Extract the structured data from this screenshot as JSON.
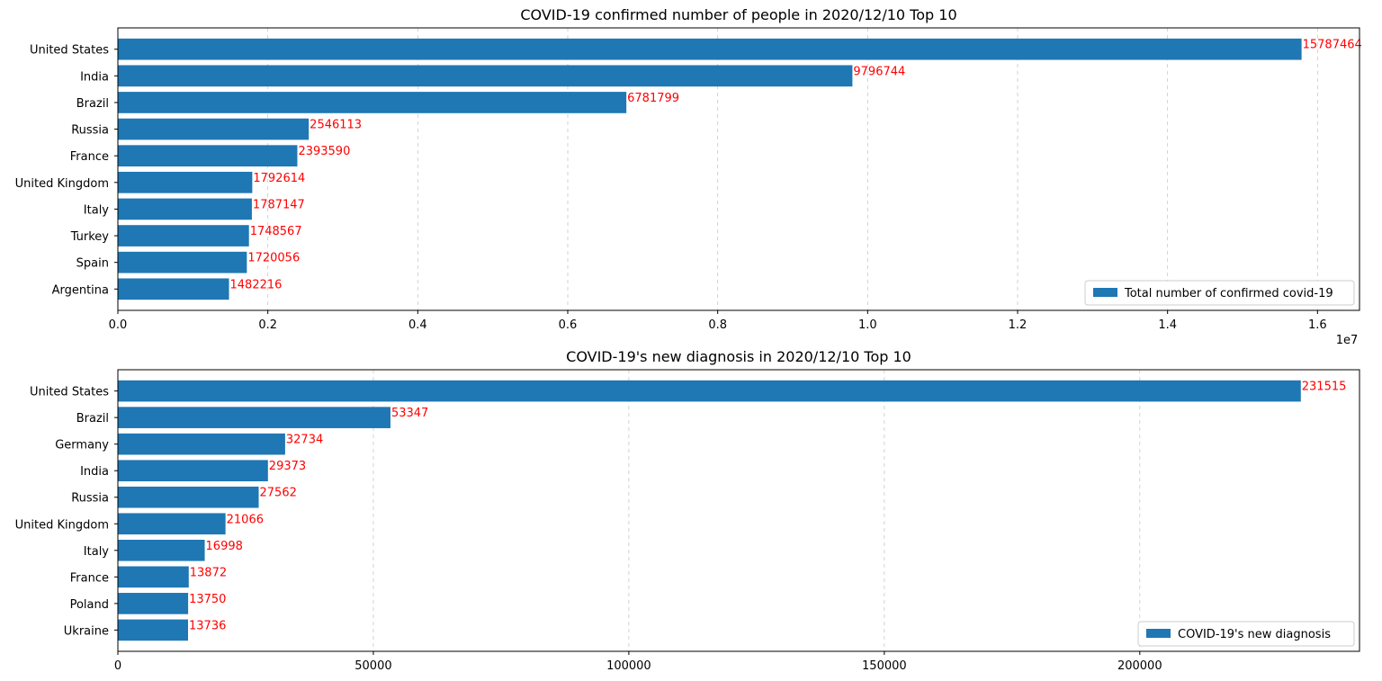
{
  "chart_data": [
    {
      "type": "bar",
      "orientation": "horizontal",
      "title": "COVID-19 confirmed number of people in 2020/12/10 Top 10",
      "categories": [
        "United States",
        "India",
        "Brazil",
        "Russia",
        "France",
        "United Kingdom",
        "Italy",
        "Turkey",
        "Spain",
        "Argentina"
      ],
      "values": [
        15787464,
        9796744,
        6781799,
        2546113,
        2393590,
        1792614,
        1787147,
        1748567,
        1720056,
        1482216
      ],
      "series_name": "Total number of confirmed covid-19",
      "xlim": [
        0,
        16560000
      ],
      "xticks": [
        0,
        2000000,
        4000000,
        6000000,
        8000000,
        10000000,
        12000000,
        14000000,
        16000000
      ],
      "xtick_labels": [
        "0.0",
        "0.2",
        "0.4",
        "0.6",
        "0.8",
        "1.0",
        "1.2",
        "1.4",
        "1.6"
      ],
      "offset_text": "1e7",
      "xlabel": "",
      "ylabel": "",
      "grid": "x-dashed",
      "legend": "lower-right",
      "bar_color": "#1f77b4",
      "label_color": "#ff0000"
    },
    {
      "type": "bar",
      "orientation": "horizontal",
      "title": "COVID-19's new diagnosis in 2020/12/10 Top 10",
      "categories": [
        "United States",
        "Brazil",
        "Germany",
        "India",
        "Russia",
        "United Kingdom",
        "Italy",
        "France",
        "Poland",
        "Ukraine"
      ],
      "values": [
        231515,
        53347,
        32734,
        29373,
        27562,
        21066,
        16998,
        13872,
        13750,
        13736
      ],
      "series_name": "COVID-19's new diagnosis",
      "xlim": [
        0,
        243000
      ],
      "xticks": [
        0,
        50000,
        100000,
        150000,
        200000
      ],
      "xtick_labels": [
        "0",
        "50000",
        "100000",
        "150000",
        "200000"
      ],
      "xlabel": "",
      "ylabel": "",
      "grid": "x-dashed",
      "legend": "lower-right",
      "bar_color": "#1f77b4",
      "label_color": "#ff0000"
    }
  ]
}
